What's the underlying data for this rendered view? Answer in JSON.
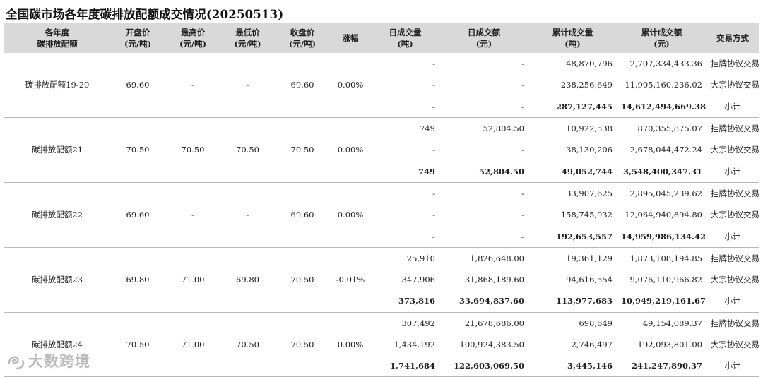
{
  "title": "全国碳市场各年度碳排放配额成交情况(20250513)",
  "headers": [
    [
      "各年度",
      "碳排放配额"
    ],
    [
      "开盘价",
      "(元/吨)"
    ],
    [
      "最高价",
      "(元/吨)"
    ],
    [
      "最低价",
      "(元/吨)"
    ],
    [
      "收盘价",
      "(元/吨)"
    ],
    [
      "涨幅"
    ],
    [
      "日成交量",
      "(吨)"
    ],
    [
      "日成交额",
      "(元)"
    ],
    [
      "累计成交量",
      "(吨)"
    ],
    [
      "累计成交额",
      "(元)"
    ],
    [
      "交易方式"
    ]
  ],
  "groups": [
    {
      "name": "碳排放配额19-20",
      "open": "69.60",
      "high": "-",
      "low": "-",
      "close": "69.60",
      "change": "0.00%",
      "rows": [
        {
          "daily_vol": "-",
          "daily_amt": "-",
          "cum_vol": "48,870,796",
          "cum_amt": "2,707,334,433.36",
          "method": "挂牌协议交易"
        },
        {
          "daily_vol": "-",
          "daily_amt": "-",
          "cum_vol": "238,256,649",
          "cum_amt": "11,905,160,236.02",
          "method": "大宗协议交易"
        },
        {
          "daily_vol": "-",
          "daily_amt": "-",
          "cum_vol": "287,127,445",
          "cum_amt": "14,612,494,669.38",
          "method": "小计"
        }
      ]
    },
    {
      "name": "碳排放配额21",
      "open": "70.50",
      "high": "70.50",
      "low": "70.50",
      "close": "70.50",
      "change": "0.00%",
      "rows": [
        {
          "daily_vol": "749",
          "daily_amt": "52,804.50",
          "cum_vol": "10,922,538",
          "cum_amt": "870,355,875.07",
          "method": "挂牌协议交易"
        },
        {
          "daily_vol": "-",
          "daily_amt": "-",
          "cum_vol": "38,130,206",
          "cum_amt": "2,678,044,472.24",
          "method": "大宗协议交易"
        },
        {
          "daily_vol": "749",
          "daily_amt": "52,804.50",
          "cum_vol": "49,052,744",
          "cum_amt": "3,548,400,347.31",
          "method": "小计"
        }
      ]
    },
    {
      "name": "碳排放配额22",
      "open": "69.60",
      "high": "-",
      "low": "-",
      "close": "69.60",
      "change": "0.00%",
      "rows": [
        {
          "daily_vol": "-",
          "daily_amt": "-",
          "cum_vol": "33,907,625",
          "cum_amt": "2,895,045,239.62",
          "method": "挂牌协议交易"
        },
        {
          "daily_vol": "-",
          "daily_amt": "-",
          "cum_vol": "158,745,932",
          "cum_amt": "12,064,940,894.80",
          "method": "大宗协议交易"
        },
        {
          "daily_vol": "-",
          "daily_amt": "-",
          "cum_vol": "192,653,557",
          "cum_amt": "14,959,986,134.42",
          "method": "小计"
        }
      ]
    },
    {
      "name": "碳排放配额23",
      "open": "69.80",
      "high": "71.00",
      "low": "69.80",
      "close": "70.50",
      "change": "-0.01%",
      "rows": [
        {
          "daily_vol": "25,910",
          "daily_amt": "1,826,648.00",
          "cum_vol": "19,361,129",
          "cum_amt": "1,873,108,194.85",
          "method": "挂牌协议交易"
        },
        {
          "daily_vol": "347,906",
          "daily_amt": "31,868,189.60",
          "cum_vol": "94,616,554",
          "cum_amt": "9,076,110,966.82",
          "method": "大宗协议交易"
        },
        {
          "daily_vol": "373,816",
          "daily_amt": "33,694,837.60",
          "cum_vol": "113,977,683",
          "cum_amt": "10,949,219,161.67",
          "method": "小计"
        }
      ]
    },
    {
      "name": "碳排放配额24",
      "open": "70.50",
      "high": "71.00",
      "low": "70.50",
      "close": "70.50",
      "change": "0.00%",
      "rows": [
        {
          "daily_vol": "307,492",
          "daily_amt": "21,678,686.00",
          "cum_vol": "698,649",
          "cum_amt": "49,154,089.37",
          "method": "挂牌协议交易"
        },
        {
          "daily_vol": "1,434,192",
          "daily_amt": "100,924,383.50",
          "cum_vol": "2,746,497",
          "cum_amt": "192,093,801.00",
          "method": "大宗协议交易"
        },
        {
          "daily_vol": "1,741,684",
          "daily_amt": "122,603,069.50",
          "cum_vol": "3,445,146",
          "cum_amt": "241,247,890.37",
          "method": "小计"
        }
      ]
    }
  ],
  "watermark": "大数跨境"
}
